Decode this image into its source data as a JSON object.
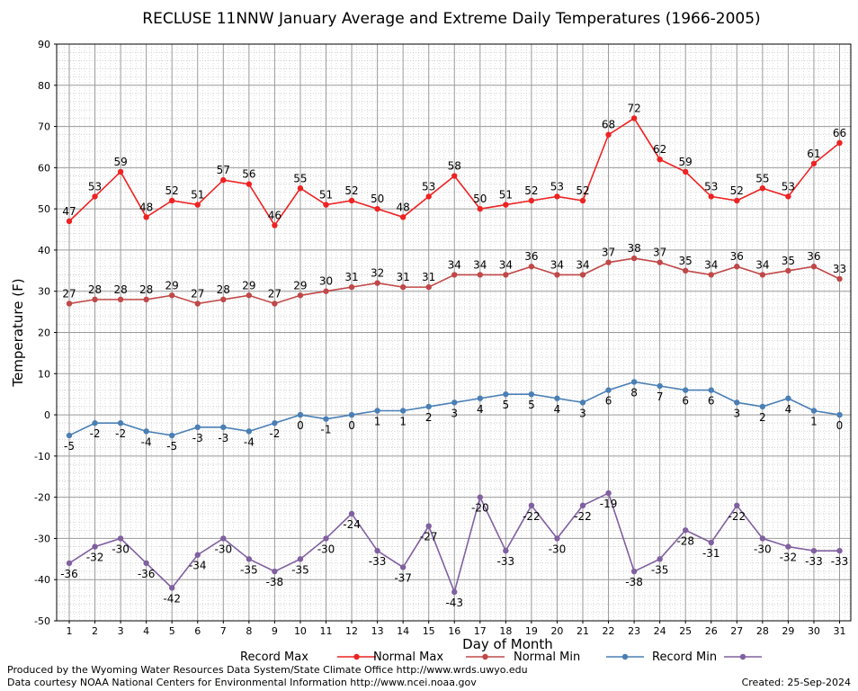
{
  "chart_data": {
    "type": "line",
    "title": "RECLUSE 11NNW January Average and Extreme Daily Temperatures (1966-2005)",
    "xlabel": "Day of Month",
    "ylabel": "Temperature (F)",
    "ylim": [
      -50,
      90
    ],
    "yticks": [
      90,
      80,
      70,
      60,
      50,
      40,
      30,
      20,
      10,
      0,
      -10,
      -20,
      -30,
      -40,
      -50
    ],
    "x": [
      1,
      2,
      3,
      4,
      5,
      6,
      7,
      8,
      9,
      10,
      11,
      12,
      13,
      14,
      15,
      16,
      17,
      18,
      19,
      20,
      21,
      22,
      23,
      24,
      25,
      26,
      27,
      28,
      29,
      30,
      31
    ],
    "grid": true,
    "legend_position": "bottom",
    "series": [
      {
        "name": "Record Max",
        "color": "#ee2222",
        "label_side": "above",
        "values": [
          47,
          53,
          59,
          48,
          52,
          51,
          57,
          56,
          46,
          55,
          51,
          52,
          50,
          48,
          53,
          58,
          50,
          51,
          52,
          53,
          52,
          68,
          72,
          62,
          59,
          53,
          52,
          55,
          53,
          61,
          66
        ]
      },
      {
        "name": "Normal Max",
        "color": "#c04848",
        "label_side": "above",
        "values": [
          27,
          28,
          28,
          28,
          29,
          27,
          28,
          29,
          27,
          29,
          30,
          31,
          32,
          31,
          31,
          34,
          34,
          34,
          36,
          34,
          34,
          37,
          38,
          37,
          35,
          34,
          36,
          34,
          35,
          36,
          33
        ]
      },
      {
        "name": "Normal Min",
        "color": "#4a7fb5",
        "label_side": "below",
        "values": [
          -5,
          -2,
          -2,
          -4,
          -5,
          -3,
          -3,
          -4,
          -2,
          0,
          -1,
          0,
          1,
          1,
          2,
          3,
          4,
          5,
          5,
          4,
          3,
          6,
          8,
          7,
          6,
          6,
          3,
          2,
          4,
          1,
          0
        ]
      },
      {
        "name": "Record Min",
        "color": "#8060a0",
        "label_side": "below",
        "values": [
          -36,
          -32,
          -30,
          -36,
          -42,
          -34,
          -30,
          -35,
          -38,
          -35,
          -30,
          -24,
          -33,
          -37,
          -27,
          -43,
          -20,
          -33,
          -22,
          -30,
          -22,
          -19,
          -38,
          -35,
          -28,
          -31,
          -22,
          -30,
          -32,
          -33,
          -33
        ]
      }
    ]
  },
  "footer": {
    "produced_by": "Produced by the Wyoming Water Resources Data System/State Climate Office http://www.wrds.uwyo.edu",
    "courtesy": "Data courtesy NOAA National Centers for Environmental Information http://www.ncei.noaa.gov",
    "created": "Created:  25-Sep-2024"
  }
}
